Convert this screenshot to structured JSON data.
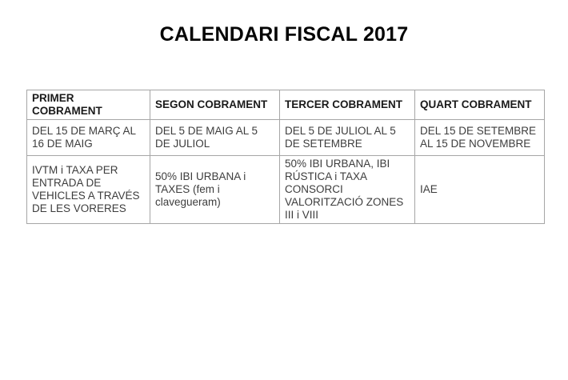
{
  "page": {
    "title": "CALENDARI FISCAL 2017"
  },
  "colors": {
    "background": "#ffffff",
    "border": "#a6a6a6",
    "title": "#050505",
    "header_text": "#1a1a1a",
    "body_text": "#3d3d3d"
  },
  "table": {
    "headers": [
      "PRIMER COBRAMENT",
      "SEGON COBRAMENT",
      "TERCER COBRAMENT",
      "QUART COBRAMENT"
    ],
    "periods": [
      "DEL 15 DE MARÇ AL 16 DE MAIG",
      "DEL 5 DE MAIG AL 5 DE JULIOL",
      "DEL 5 DE JULIOL AL 5 DE SETEMBRE",
      "DEL 15 DE SETEMBRE AL 15 DE NOVEMBRE"
    ],
    "taxes": [
      "IVTM i TAXA PER ENTRADA DE VEHICLES A TRAVÉS DE LES VORERES",
      "50% IBI URBANA i TAXES (fem i clavegueram)",
      "50% IBI URBANA, IBI RÚSTICA i TAXA CONSORCI VALORITZACIÓ ZONES III i VIII",
      "IAE"
    ]
  }
}
